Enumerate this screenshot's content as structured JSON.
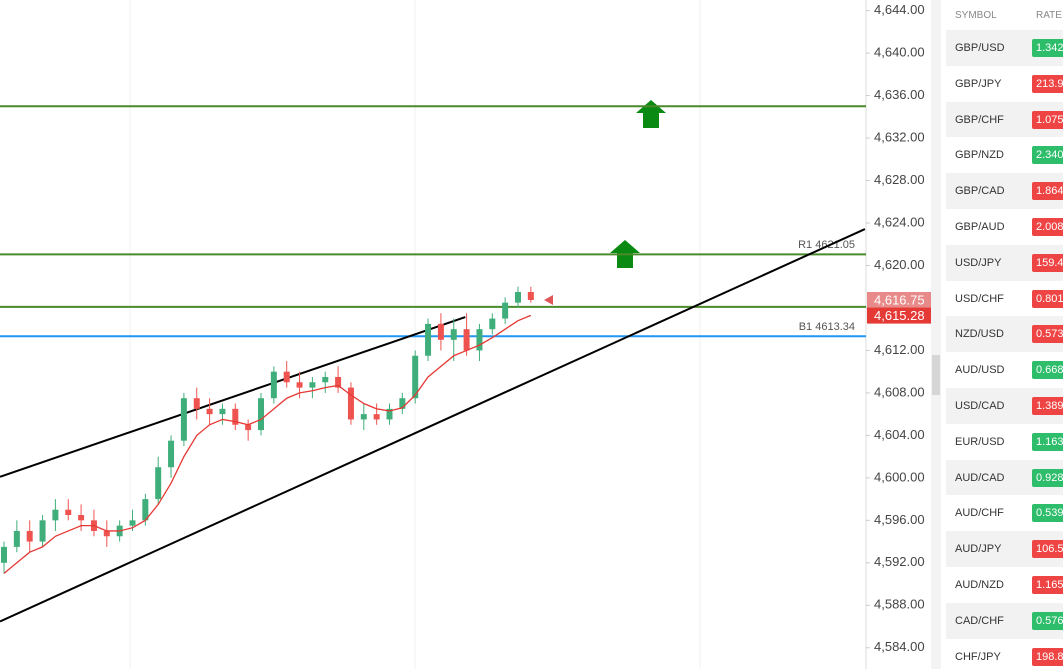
{
  "chart_data": {
    "type": "candlestick",
    "ylim": [
      4582,
      4645
    ],
    "yticks": [
      {
        "value": 4644,
        "label": "4,644.00"
      },
      {
        "value": 4640,
        "label": "4,640.00"
      },
      {
        "value": 4636,
        "label": "4,636.00"
      },
      {
        "value": 4632,
        "label": "4,632.00"
      },
      {
        "value": 4628,
        "label": "4,628.00"
      },
      {
        "value": 4624,
        "label": "4,624.00"
      },
      {
        "value": 4620,
        "label": "4,620.00"
      },
      {
        "value": 4616,
        "label": "4,616.00"
      },
      {
        "value": 4612,
        "label": "4,612.00"
      },
      {
        "value": 4608,
        "label": "4,608.00"
      },
      {
        "value": 4604,
        "label": "4,604.00"
      },
      {
        "value": 4600,
        "label": "4,600.00"
      },
      {
        "value": 4596,
        "label": "4,596.00"
      },
      {
        "value": 4592,
        "label": "4,592.00"
      },
      {
        "value": 4588,
        "label": "4,588.00"
      },
      {
        "value": 4584,
        "label": "4,584.00"
      }
    ],
    "up_color": "#3fae7a",
    "down_color": "#ef5350",
    "ohlc": [
      [
        4592,
        4594,
        4591,
        4593.5
      ],
      [
        4593.5,
        4596,
        4593,
        4595
      ],
      [
        4595,
        4596,
        4593,
        4594
      ],
      [
        4594,
        4596.5,
        4593.5,
        4596
      ],
      [
        4596,
        4598,
        4595,
        4597
      ],
      [
        4597,
        4598,
        4596,
        4596.5
      ],
      [
        4596.5,
        4597.5,
        4595,
        4596
      ],
      [
        4596,
        4597,
        4594.5,
        4595
      ],
      [
        4595,
        4596,
        4593.5,
        4594.5
      ],
      [
        4594.5,
        4596,
        4594,
        4595.5
      ],
      [
        4595.5,
        4597,
        4595,
        4596
      ],
      [
        4596,
        4598.5,
        4595.5,
        4598
      ],
      [
        4598,
        4602,
        4597.5,
        4601
      ],
      [
        4601,
        4604,
        4600,
        4603.5
      ],
      [
        4603.5,
        4608,
        4603,
        4607.5
      ],
      [
        4607.5,
        4608.5,
        4605.5,
        4606.5
      ],
      [
        4606.5,
        4607.5,
        4605,
        4606
      ],
      [
        4606,
        4607,
        4605,
        4606.5
      ],
      [
        4606.5,
        4607,
        4604.5,
        4605
      ],
      [
        4605,
        4605.5,
        4603.5,
        4604.5
      ],
      [
        4604.5,
        4608,
        4604,
        4607.5
      ],
      [
        4607.5,
        4610.5,
        4607,
        4610
      ],
      [
        4610,
        4611,
        4608.5,
        4609
      ],
      [
        4609,
        4610,
        4607.5,
        4608.5
      ],
      [
        4608.5,
        4609.5,
        4607.5,
        4609
      ],
      [
        4609,
        4610,
        4608,
        4609.5
      ],
      [
        4609.5,
        4610.5,
        4608,
        4608.5
      ],
      [
        4608.5,
        4609,
        4605,
        4605.5
      ],
      [
        4605.5,
        4607,
        4604.5,
        4606
      ],
      [
        4606,
        4607,
        4605,
        4605.5
      ],
      [
        4605.5,
        4607,
        4605,
        4606.5
      ],
      [
        4606.5,
        4608,
        4606,
        4607.5
      ],
      [
        4607.5,
        4612,
        4607,
        4611.5
      ],
      [
        4611.5,
        4615,
        4611,
        4614.5
      ],
      [
        4614.5,
        4615.5,
        4612,
        4613
      ],
      [
        4613,
        4615,
        4611,
        4614
      ],
      [
        4614,
        4615.5,
        4611.5,
        4612
      ],
      [
        4612,
        4614.5,
        4611,
        4614
      ],
      [
        4614,
        4615.5,
        4613.5,
        4615
      ],
      [
        4615,
        4617,
        4614.5,
        4616.5
      ],
      [
        4616.5,
        4618,
        4616,
        4617.5
      ],
      [
        4617.5,
        4618,
        4616.5,
        4616.75
      ]
    ],
    "ma": {
      "color": "#e53935",
      "values": [
        4591,
        4592,
        4593,
        4593.5,
        4594.5,
        4595,
        4595.5,
        4595.5,
        4595,
        4595,
        4595.3,
        4596,
        4597.5,
        4599.5,
        4602,
        4604,
        4605,
        4605.5,
        4605.3,
        4605,
        4605.5,
        4606.5,
        4607.5,
        4608,
        4608.2,
        4608.5,
        4608.7,
        4607.8,
        4607,
        4606.5,
        4606.3,
        4606.6,
        4607.8,
        4609.5,
        4610.5,
        4611.5,
        4612,
        4612.5,
        4613.2,
        4614,
        4614.8,
        4615.3
      ]
    },
    "levels": [
      {
        "value": 4635,
        "color": "#4a8a2a"
      },
      {
        "value": 4621.05,
        "color": "#4a8a2a",
        "label": "R1 4621.05"
      },
      {
        "value": 4616.1,
        "color": "#4a8a2a"
      },
      {
        "value": 4613.34,
        "color": "#2196f3",
        "label": "B1 4613.34"
      }
    ],
    "trendlines": [
      {
        "x": [
          -0.31,
          35.9
        ],
        "y": [
          4600.1,
          4615.14
        ]
      },
      {
        "x": [
          -0.31,
          67
        ],
        "y": [
          4586.48,
          4623.43
        ]
      }
    ],
    "price_tags": [
      {
        "value": 4616.75,
        "label": "4,616.75",
        "color": "#e88a8a"
      },
      {
        "value": 4615.28,
        "label": "4,615.28",
        "color": "#e53935"
      }
    ]
  },
  "watchlist": {
    "header": [
      "SYMBOL",
      "RATE"
    ],
    "rows": [
      {
        "symbol": "GBP/USD",
        "rate": "1.342",
        "color": "#2ebd6b"
      },
      {
        "symbol": "GBP/JPY",
        "rate": "213.9",
        "color": "#ef4444"
      },
      {
        "symbol": "GBP/CHF",
        "rate": "1.075",
        "color": "#ef4444"
      },
      {
        "symbol": "GBP/NZD",
        "rate": "2.340",
        "color": "#2ebd6b"
      },
      {
        "symbol": "GBP/CAD",
        "rate": "1.864",
        "color": "#ef4444"
      },
      {
        "symbol": "GBP/AUD",
        "rate": "2.008",
        "color": "#ef4444"
      },
      {
        "symbol": "USD/JPY",
        "rate": "159.4",
        "color": "#ef4444"
      },
      {
        "symbol": "USD/CHF",
        "rate": "0.801",
        "color": "#ef4444"
      },
      {
        "symbol": "NZD/USD",
        "rate": "0.573",
        "color": "#ef4444"
      },
      {
        "symbol": "AUD/USD",
        "rate": "0.668",
        "color": "#2ebd6b"
      },
      {
        "symbol": "USD/CAD",
        "rate": "1.389",
        "color": "#ef4444"
      },
      {
        "symbol": "EUR/USD",
        "rate": "1.163",
        "color": "#2ebd6b"
      },
      {
        "symbol": "AUD/CAD",
        "rate": "0.928",
        "color": "#2ebd6b"
      },
      {
        "symbol": "AUD/CHF",
        "rate": "0.539",
        "color": "#2ebd6b"
      },
      {
        "symbol": "AUD/JPY",
        "rate": "106.5",
        "color": "#ef4444"
      },
      {
        "symbol": "AUD/NZD",
        "rate": "1.165",
        "color": "#ef4444"
      },
      {
        "symbol": "CAD/CHF",
        "rate": "0.576",
        "color": "#2ebd6b"
      },
      {
        "symbol": "CHF/JPY",
        "rate": "198.8",
        "color": "#ef4444"
      }
    ]
  }
}
